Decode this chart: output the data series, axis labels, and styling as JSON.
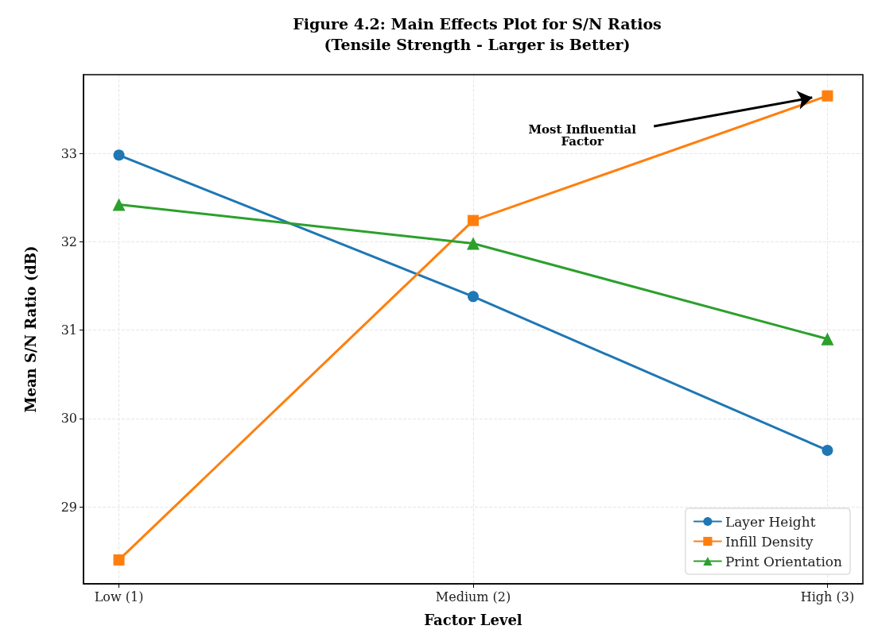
{
  "chart_data": {
    "type": "line",
    "title": "Figure 4.2: Main Effects Plot for S/N Ratios\n(Tensile Strength - Larger is Better)",
    "xlabel": "Factor Level",
    "ylabel": "Mean S/N Ratio (dB)",
    "x": [
      1,
      2,
      3
    ],
    "series": [
      {
        "name": "Layer Height",
        "color": "#1f77b4",
        "marker": "circle",
        "values": [
          32.98,
          31.38,
          29.64
        ]
      },
      {
        "name": "Infill Density",
        "color": "#ff7f0e",
        "marker": "square",
        "values": [
          28.4,
          32.24,
          33.65
        ]
      },
      {
        "name": "Print Orientation",
        "color": "#2ca02c",
        "marker": "triangle",
        "values": [
          32.42,
          31.98,
          30.9
        ]
      }
    ],
    "xlim": [
      0.9,
      3.1
    ],
    "xticks": [
      {
        "value": 1,
        "label": "Low (1)"
      },
      {
        "value": 2,
        "label": "Medium (2)"
      },
      {
        "value": 3,
        "label": "High (3)"
      }
    ],
    "ylim": [
      28.13,
      33.89
    ],
    "yticks": [
      29,
      30,
      31,
      32,
      33
    ],
    "grid": true,
    "legend": "bottom right",
    "line_style": "solid",
    "annotations": [
      "Most Influential\nFactor"
    ]
  }
}
